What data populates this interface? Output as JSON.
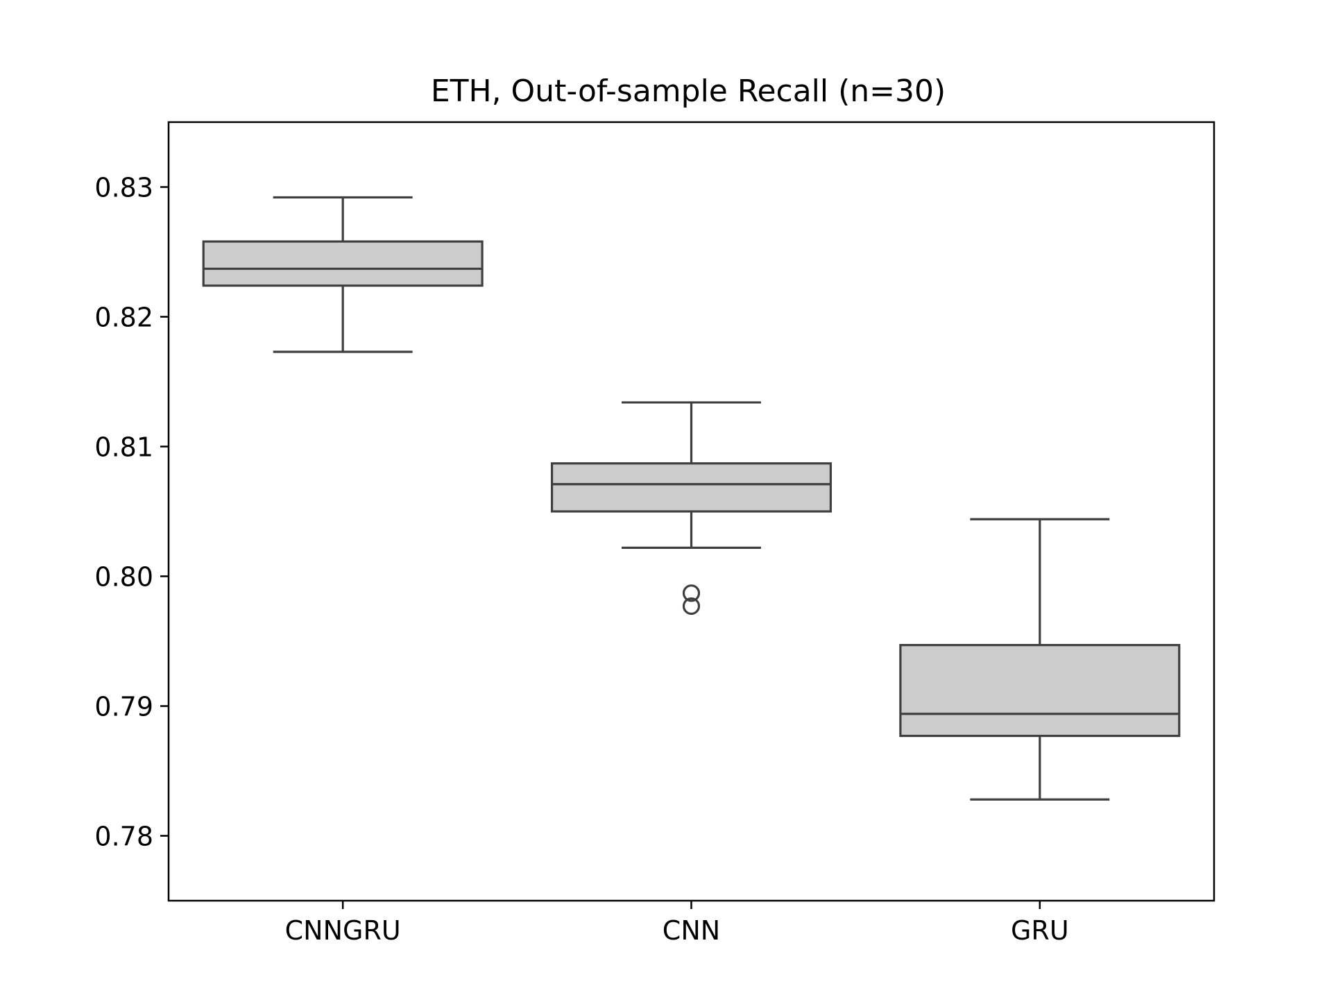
{
  "chart_data": {
    "type": "boxplot",
    "title": "ETH, Out-of-sample Recall (n=30)",
    "xlabel": "",
    "ylabel": "",
    "ylim": [
      0.775,
      0.835
    ],
    "yticks": [
      0.78,
      0.79,
      0.8,
      0.81,
      0.82,
      0.83
    ],
    "ytick_labels": [
      "0.78",
      "0.79",
      "0.80",
      "0.81",
      "0.82",
      "0.83"
    ],
    "categories": [
      "CNNGRU",
      "CNN",
      "GRU"
    ],
    "boxes": [
      {
        "category": "CNNGRU",
        "whisker_low": 0.8173,
        "q1": 0.8224,
        "median": 0.8237,
        "q3": 0.8258,
        "whisker_high": 0.8292,
        "outliers": []
      },
      {
        "category": "CNN",
        "whisker_low": 0.8022,
        "q1": 0.805,
        "median": 0.8071,
        "q3": 0.8087,
        "whisker_high": 0.8134,
        "outliers": [
          0.7987,
          0.7977
        ]
      },
      {
        "category": "GRU",
        "whisker_low": 0.7828,
        "q1": 0.7877,
        "median": 0.7894,
        "q3": 0.7947,
        "whisker_high": 0.8044,
        "outliers": []
      }
    ],
    "grid": false,
    "legend": "none",
    "colors": {
      "box_fill": "#cccccc",
      "box_edge": "#3f3f3f",
      "axes": "#000000"
    }
  }
}
